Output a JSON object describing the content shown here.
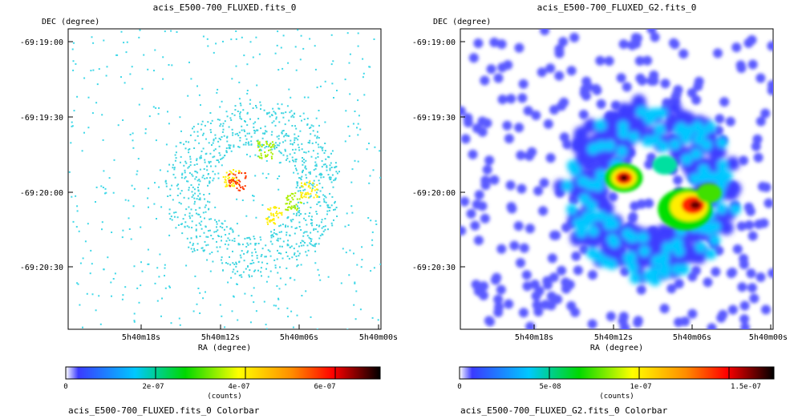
{
  "panels": [
    {
      "title": "acis_E500-700_FLUXED.fits_0",
      "xlabel": "RA (degree)",
      "ylabel": "DEC (degree)",
      "xticks": [
        "5h40m18s",
        "5h40m12s",
        "5h40m06s",
        "5h40m00s"
      ],
      "yticks": [
        "-69:19:00",
        "-69:19:30",
        "-69:20:00",
        "-69:20:30"
      ],
      "colorbar": {
        "ticks": [
          "0",
          "2e-07",
          "4e-07",
          "6e-07"
        ],
        "tick_values": [
          0,
          2e-07,
          4e-07,
          6e-07
        ],
        "max": 7e-07,
        "unit": "(counts)",
        "caption": "acis_E500-700_FLUXED.fits_0 Colorbar"
      }
    },
    {
      "title": "acis_E500-700_FLUXED_G2.fits_0",
      "xlabel": "RA (degree)",
      "ylabel": "DEC (degree)",
      "xticks": [
        "5h40m18s",
        "5h40m12s",
        "5h40m06s",
        "5h40m00s"
      ],
      "yticks": [
        "-69:19:00",
        "-69:19:30",
        "-69:20:00",
        "-69:20:30"
      ],
      "colorbar": {
        "ticks": [
          "0",
          "5e-08",
          "1e-07",
          "1.5e-07"
        ],
        "tick_values": [
          0,
          5e-08,
          1e-07,
          1.5e-07
        ],
        "max": 1.75e-07,
        "unit": "(counts)",
        "caption": "acis_E500-700_FLUXED_G2.fits_0 Colorbar"
      }
    }
  ],
  "chart_data": [
    {
      "type": "heatmap",
      "title": "acis_E500-700_FLUXED.fits_0",
      "xlabel": "RA (degree)",
      "ylabel": "DEC (degree)",
      "xticks": [
        "5h40m18s",
        "5h40m12s",
        "5h40m06s",
        "5h40m00s"
      ],
      "yticks": [
        "-69:19:00",
        "-69:19:30",
        "-69:20:00",
        "-69:20:30"
      ],
      "colorbar_range": [
        0,
        7e-07
      ],
      "colorbar_ticks": [
        0,
        2e-07,
        4e-07,
        6e-07
      ],
      "colormap": [
        "#ffffff",
        "#3030ff",
        "#00c8ff",
        "#00e000",
        "#ffff00",
        "#ff8000",
        "#ff0000",
        "#000000"
      ]
    },
    {
      "type": "heatmap",
      "title": "acis_E500-700_FLUXED_G2.fits_0",
      "xlabel": "RA (degree)",
      "ylabel": "DEC (degree)",
      "xticks": [
        "5h40m18s",
        "5h40m12s",
        "5h40m06s",
        "5h40m00s"
      ],
      "yticks": [
        "-69:19:00",
        "-69:19:30",
        "-69:20:00",
        "-69:20:30"
      ],
      "colorbar_range": [
        0,
        1.75e-07
      ],
      "colorbar_ticks": [
        0,
        5e-08,
        1e-07,
        1.5e-07
      ],
      "colormap": [
        "#ffffff",
        "#3030ff",
        "#00c8ff",
        "#00e000",
        "#ffff00",
        "#ff8000",
        "#ff0000",
        "#000000"
      ]
    }
  ]
}
